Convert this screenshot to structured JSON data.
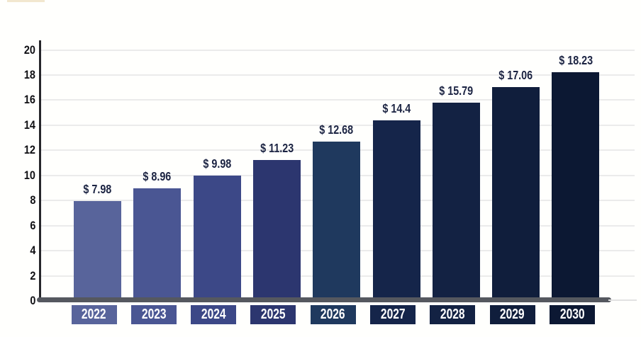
{
  "chart_data": {
    "type": "bar",
    "title": "",
    "categories": [
      "2022",
      "2023",
      "2024",
      "2025",
      "2026",
      "2027",
      "2028",
      "2029",
      "2030"
    ],
    "values": [
      7.98,
      8.96,
      9.98,
      11.23,
      12.68,
      14.4,
      15.79,
      17.06,
      18.23
    ],
    "value_labels": [
      "$ 7.98",
      "$ 8.96",
      "$ 9.98",
      "$ 11.23",
      "$ 12.68",
      "$ 14.4",
      "$ 15.79",
      "$ 17.06",
      "$ 18.23"
    ],
    "y_ticks": [
      0,
      2,
      4,
      6,
      8,
      10,
      12,
      14,
      16,
      18,
      20
    ],
    "ylim": [
      0,
      20
    ],
    "xlabel": "",
    "ylabel": "",
    "grid": "horizontal",
    "legend": "none",
    "bar_colors": [
      "#58649b",
      "#4a5693",
      "#3c4887",
      "#2c366f",
      "#1f395e",
      "#15254a",
      "#132243",
      "#101e3c",
      "#0c1833"
    ],
    "x_label_box_colors": [
      "#58649b",
      "#4a5693",
      "#3c4887",
      "#2c366f",
      "#1f395e",
      "#15254a",
      "#132243",
      "#101e3c",
      "#0c1833"
    ],
    "value_label_color": "#1b2342",
    "x_label_text_color": "#ffffff",
    "y_tick_color": "#0f0f13",
    "gridline_color": "#ebebeb",
    "y_axis_line_color": "#26262b",
    "baseline_color": "#55585f"
  }
}
